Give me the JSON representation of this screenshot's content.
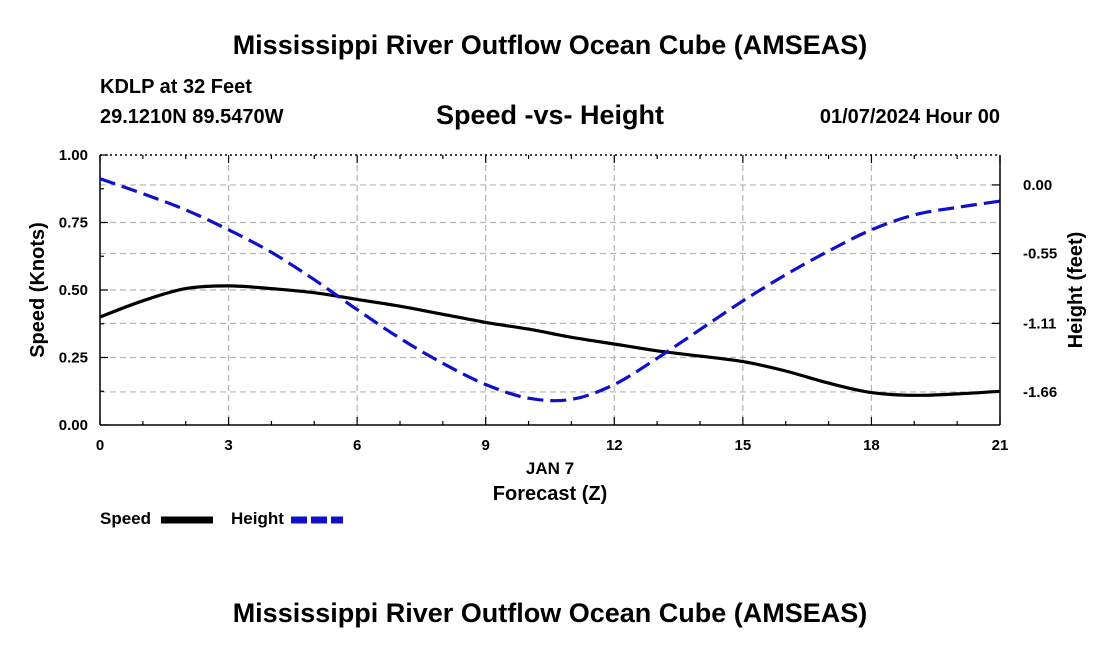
{
  "header": {
    "title": "Mississippi River Outflow Ocean Cube (AMSEAS)",
    "station": "KDLP at 32 Feet",
    "location": "29.1210N  89.5470W",
    "subtitle": "Speed -vs- Height",
    "datetime": "01/07/2024 Hour 00"
  },
  "footer": {
    "title": "Mississippi River Outflow Ocean Cube (AMSEAS)"
  },
  "colors": {
    "speed": "#000000",
    "height": "#1010c8",
    "grid": "#b4b4b4"
  },
  "chart_data": {
    "type": "line",
    "title": "Speed -vs- Height",
    "x": [
      0,
      1,
      2,
      3,
      4,
      5,
      6,
      7,
      8,
      9,
      10,
      11,
      12,
      13,
      14,
      15,
      16,
      17,
      18,
      19,
      20,
      21
    ],
    "xlim": [
      0,
      21
    ],
    "xticks": [
      0,
      3,
      6,
      9,
      12,
      15,
      18,
      21
    ],
    "xlabel_date": "JAN 7",
    "xlabel": "Forecast (Z)",
    "ylabel": "Speed (Knots)",
    "ylim": [
      0,
      1
    ],
    "yticks": [
      "0.00",
      "0.25",
      "0.50",
      "0.75",
      "1.00"
    ],
    "y2label": "Height (feet)",
    "y2lim": [
      -1.925,
      0.24
    ],
    "y2ticks": [
      "0.00",
      "-0.55",
      "-1.11",
      "-1.66"
    ],
    "grid": true,
    "series": [
      {
        "name": "Speed",
        "axis": "left",
        "style": "solid",
        "values": [
          0.4,
          0.46,
          0.505,
          0.515,
          0.505,
          0.49,
          0.465,
          0.44,
          0.41,
          0.38,
          0.355,
          0.325,
          0.3,
          0.275,
          0.255,
          0.235,
          0.2,
          0.155,
          0.12,
          0.11,
          0.115,
          0.125
        ]
      },
      {
        "name": "Height",
        "axis": "right",
        "style": "dashed",
        "values": [
          0.05,
          -0.07,
          -0.2,
          -0.36,
          -0.54,
          -0.76,
          -1.0,
          -1.23,
          -1.43,
          -1.6,
          -1.71,
          -1.72,
          -1.6,
          -1.39,
          -1.16,
          -0.93,
          -0.72,
          -0.53,
          -0.36,
          -0.24,
          -0.18,
          -0.13
        ]
      }
    ],
    "legend": {
      "position": "bottom-left",
      "entries": [
        "Speed",
        "Height"
      ]
    }
  }
}
